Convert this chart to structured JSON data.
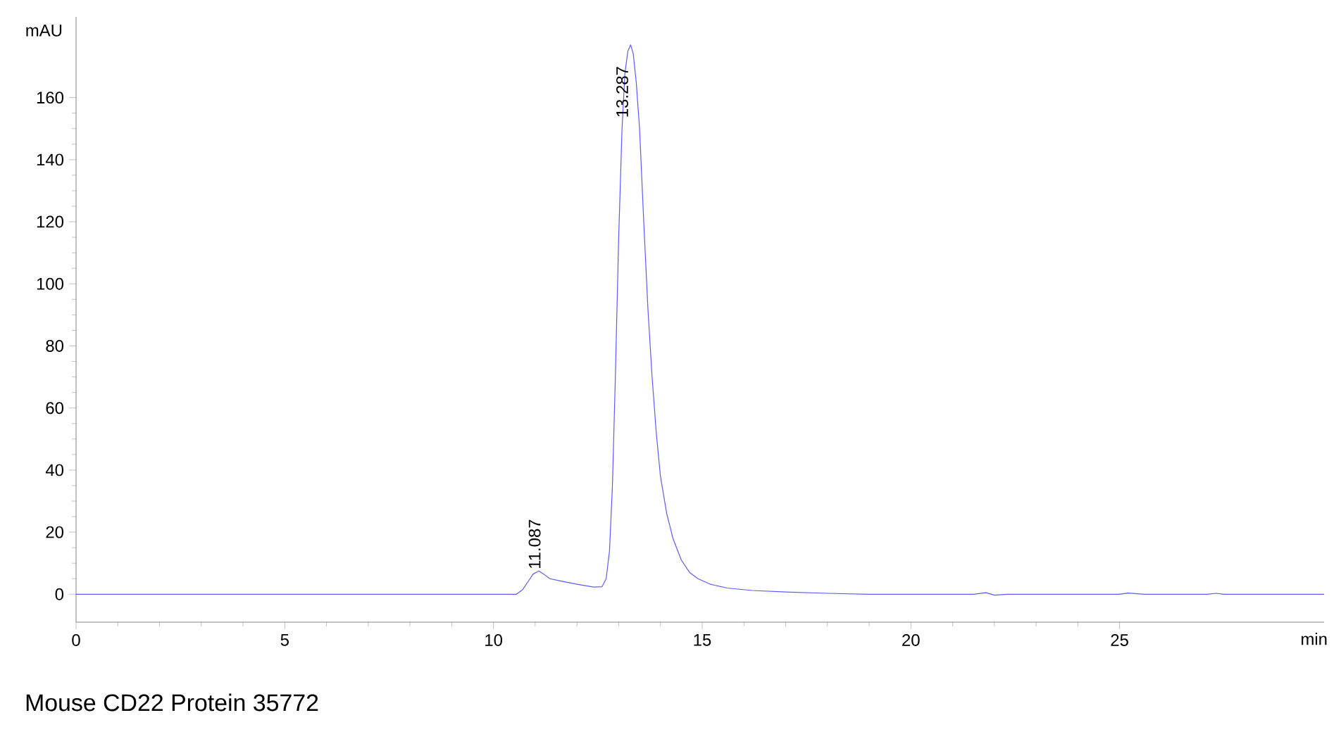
{
  "chart_data": {
    "type": "line",
    "xlabel": "min",
    "ylabel": "mAU",
    "xlim": [
      0,
      29.9
    ],
    "ylim": [
      -9,
      186
    ],
    "xticks": [
      0,
      5,
      10,
      15,
      20,
      25
    ],
    "yticks": [
      0,
      20,
      40,
      60,
      80,
      100,
      120,
      140,
      160
    ],
    "grid": false,
    "series": [
      {
        "color": "#5a5aff",
        "x": [
          0,
          5,
          10,
          10.55,
          10.7,
          10.85,
          10.95,
          11.087,
          11.2,
          11.35,
          11.6,
          12.0,
          12.4,
          12.6,
          12.7,
          12.78,
          12.85,
          12.92,
          13.0,
          13.08,
          13.15,
          13.22,
          13.287,
          13.35,
          13.42,
          13.5,
          13.6,
          13.7,
          13.8,
          13.9,
          14.0,
          14.15,
          14.3,
          14.5,
          14.7,
          14.9,
          15.2,
          15.6,
          16.2,
          17.0,
          18.0,
          19.0,
          21.5,
          21.8,
          22.0,
          22.3,
          25.0,
          25.2,
          25.6,
          27.1,
          27.3,
          27.5,
          29.9
        ],
        "values": [
          0,
          0,
          0,
          0,
          1.5,
          4.5,
          6.5,
          7.5,
          6.5,
          5,
          4.3,
          3.2,
          2.3,
          2.4,
          5,
          14,
          35,
          70,
          115,
          150,
          168,
          175,
          177,
          174,
          165,
          150,
          120,
          92,
          70,
          52,
          38,
          26,
          18,
          11,
          7,
          5,
          3.2,
          2,
          1.2,
          0.7,
          0.3,
          0,
          0,
          0.5,
          -0.3,
          0,
          0,
          0.4,
          0,
          0,
          0.3,
          0,
          0
        ]
      }
    ],
    "annotations": [
      {
        "text": "11.087",
        "x": 11.087,
        "y": 7.5
      },
      {
        "text": "13.287",
        "x": 13.287,
        "y": 177
      },
      "Mouse CD22 Protein 35772"
    ]
  }
}
